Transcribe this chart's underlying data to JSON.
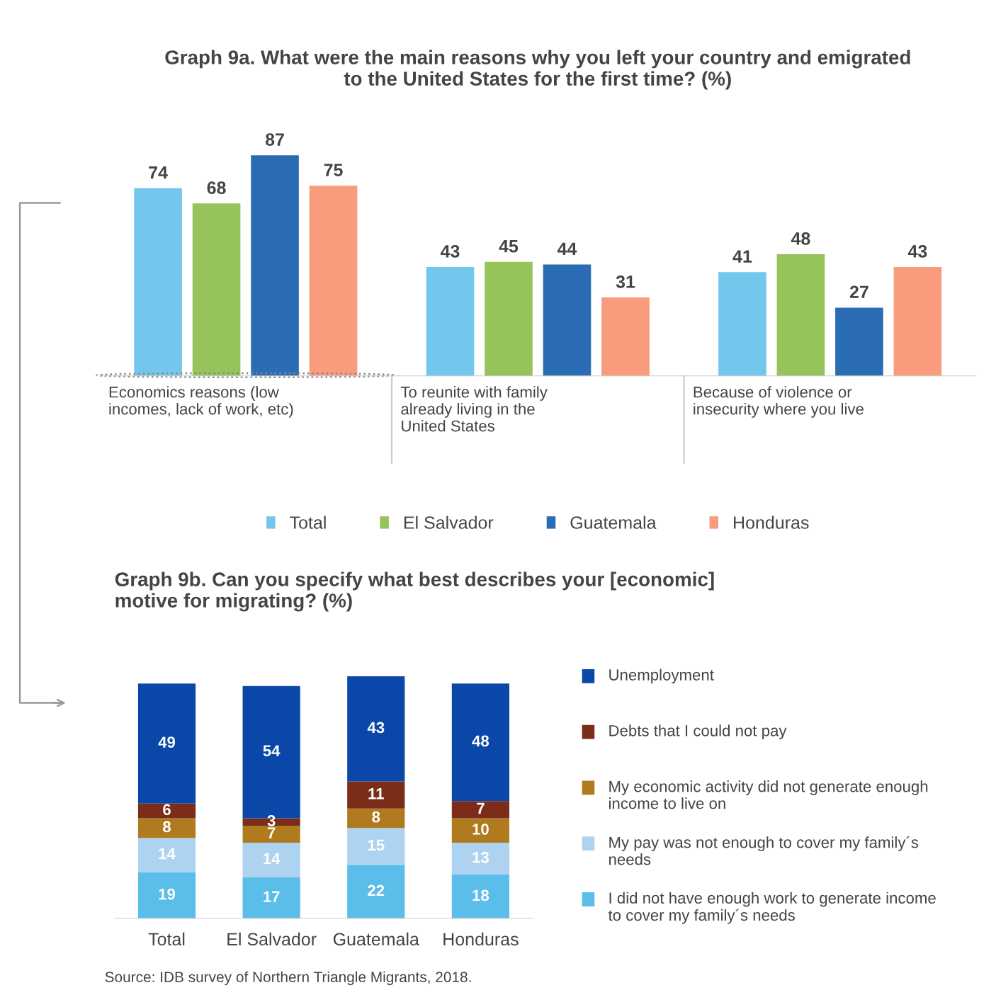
{
  "chart_data": [
    {
      "type": "bar",
      "title": "Graph 9a. What were the main reasons why you left your country and emigrated\nto the United States for the first time? (%)",
      "categories": [
        "Economics reasons (low\nincomes, lack of work, etc)",
        "To reunite with family\nalready living in the\nUnited States",
        "Because of violence or\ninsecurity where you live"
      ],
      "series": [
        {
          "name": "Total",
          "color": "#74c7ec",
          "values": [
            74,
            43,
            41
          ]
        },
        {
          "name": "El Salvador",
          "color": "#96c35a",
          "values": [
            68,
            45,
            48
          ]
        },
        {
          "name": "Guatemala",
          "color": "#2a6db5",
          "values": [
            87,
            44,
            27
          ]
        },
        {
          "name": "Honduras",
          "color": "#f99b7d",
          "values": [
            75,
            31,
            43
          ]
        }
      ],
      "data_labels": true,
      "legend": "bottom",
      "grid": false
    },
    {
      "type": "bar",
      "stacked": true,
      "title": "Graph 9b. Can you specify what best describes your [economic]\nmotive for migrating? (%)",
      "categories": [
        "Total",
        "El Salvador",
        "Guatemala",
        "Honduras"
      ],
      "series": [
        {
          "name": "I did not have enough work to generate income\nto cover my family´s needs",
          "color": "#5bbde9",
          "values": [
            19,
            17,
            22,
            18
          ]
        },
        {
          "name": "My pay was not enough to cover my family´s\nneeds",
          "color": "#aed3f0",
          "values": [
            14,
            14,
            15,
            13
          ]
        },
        {
          "name": "My economic activity did not generate enough\nincome to live on",
          "color": "#b07a1e",
          "values": [
            8,
            7,
            8,
            10
          ]
        },
        {
          "name": "Debts that I could not pay",
          "color": "#7b2d1a",
          "values": [
            6,
            3,
            11,
            7
          ]
        },
        {
          "name": "Unemployment",
          "color": "#0a47a8",
          "values": [
            49,
            54,
            43,
            48
          ]
        }
      ],
      "data_labels": true,
      "legend": "right",
      "grid": false,
      "annotations": [
        "Source: IDB survey of Northern Triangle Migrants, 2018."
      ]
    }
  ]
}
